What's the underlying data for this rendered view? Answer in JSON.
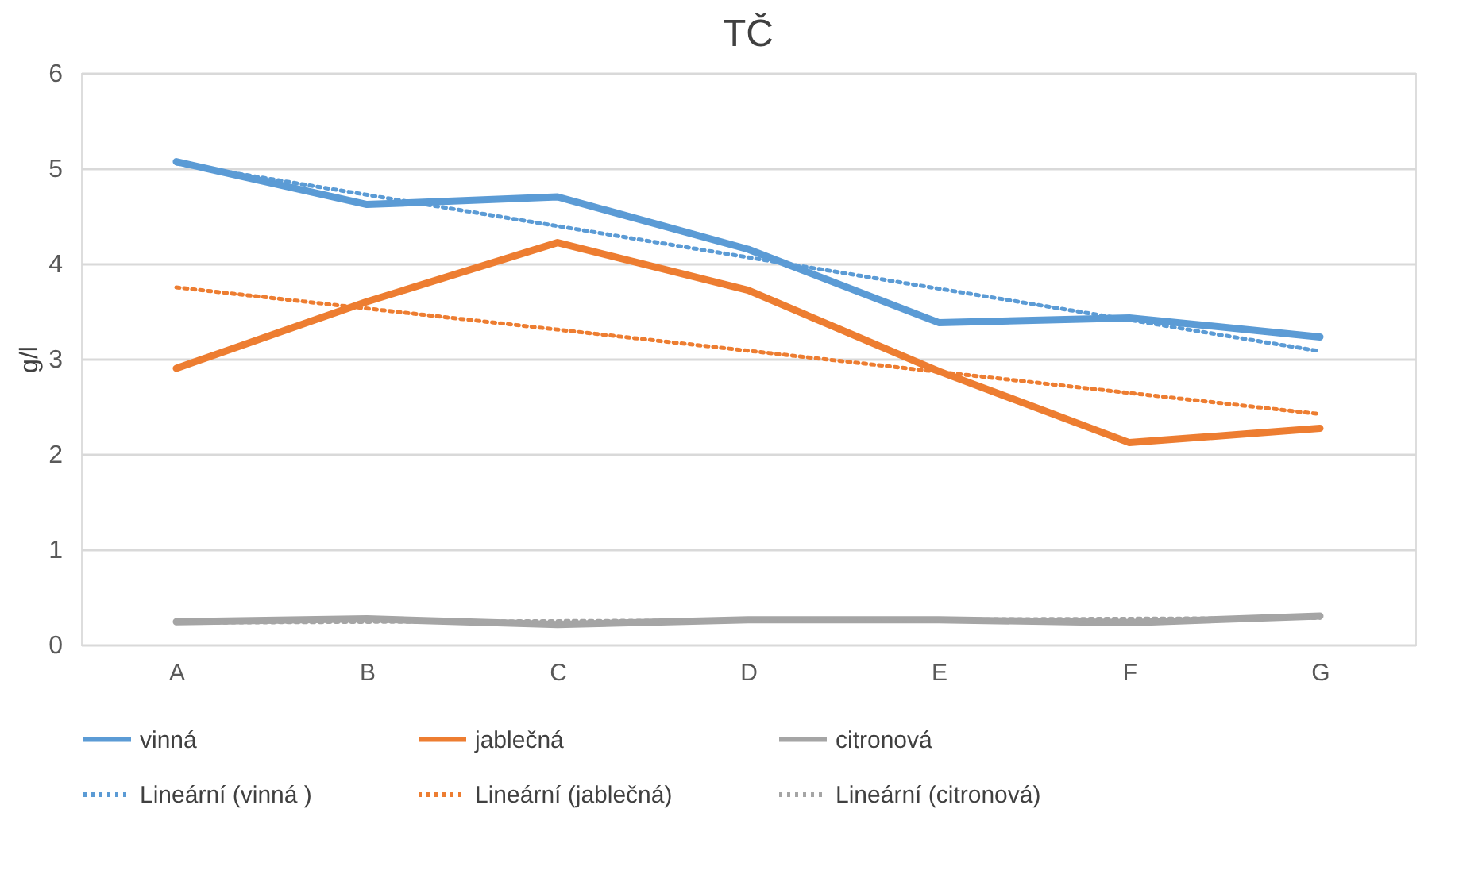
{
  "chart_data": {
    "type": "line",
    "title": "TČ",
    "ylabel": "g/l",
    "categories": [
      "A",
      "B",
      "C",
      "D",
      "E",
      "F",
      "G"
    ],
    "ylim": [
      0,
      6
    ],
    "yticks": [
      0,
      1,
      2,
      3,
      4,
      5,
      6
    ],
    "grid": "y",
    "legend": "bottom",
    "marker": "none",
    "series": [
      {
        "name": "vinná",
        "color": "#5b9bd5",
        "line_style": "solid",
        "values": [
          5.07,
          4.62,
          4.7,
          4.15,
          3.38,
          3.43,
          3.23
        ]
      },
      {
        "name": "jablečná",
        "color": "#ed7d31",
        "line_style": "solid",
        "values": [
          2.9,
          3.6,
          4.22,
          3.72,
          2.87,
          2.12,
          2.27
        ]
      },
      {
        "name": "citronová",
        "color": "#a5a5a5",
        "line_style": "solid",
        "values": [
          0.24,
          0.27,
          0.21,
          0.26,
          0.26,
          0.23,
          0.3
        ]
      },
      {
        "name": "Lineární (vinná )",
        "color": "#5b9bd5",
        "line_style": "dotted",
        "x": [
          "A",
          "G"
        ],
        "values": [
          5.05,
          3.08
        ]
      },
      {
        "name": "Lineární (jablečná)",
        "color": "#ed7d31",
        "line_style": "dotted",
        "x": [
          "A",
          "G"
        ],
        "values": [
          3.75,
          2.42
        ]
      },
      {
        "name": "Lineární (citronová)",
        "color": "#a5a5a5",
        "line_style": "dotted",
        "x": [
          "A",
          "G"
        ],
        "values": [
          0.23,
          0.28
        ]
      }
    ]
  }
}
